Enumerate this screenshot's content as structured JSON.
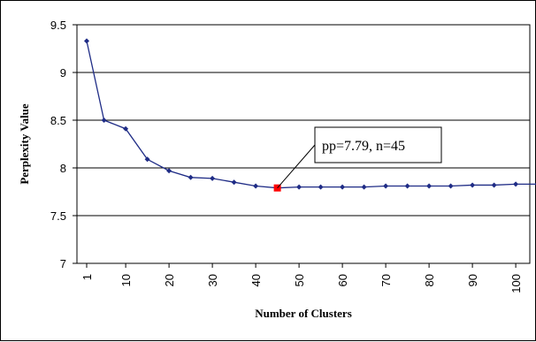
{
  "chart_data": {
    "type": "line",
    "title": "",
    "xlabel": "Number of Clusters",
    "ylabel": "Perplexity Value",
    "ylim": [
      7,
      9.5
    ],
    "y_ticks": [
      "7",
      "7.5",
      "8",
      "8.5",
      "9",
      "9.5"
    ],
    "x_ticks": [
      "1",
      "10",
      "20",
      "30",
      "40",
      "50",
      "60",
      "70",
      "80",
      "90",
      "100"
    ],
    "grid": "horizontal",
    "series": [
      {
        "color": "#1F2C86",
        "x": [
          1,
          5,
          10,
          15,
          20,
          25,
          30,
          35,
          40,
          45,
          50,
          55,
          60,
          65,
          70,
          75,
          80,
          85,
          90,
          95,
          100,
          105
        ],
        "values": [
          9.33,
          8.5,
          8.41,
          8.09,
          7.97,
          7.9,
          7.89,
          7.85,
          7.81,
          7.79,
          7.8,
          7.8,
          7.8,
          7.8,
          7.81,
          7.81,
          7.81,
          7.81,
          7.82,
          7.82,
          7.83,
          7.83
        ]
      }
    ],
    "highlight": {
      "x": 45,
      "y": 7.79,
      "color": "#FF0000"
    },
    "annotation": {
      "text": "pp=7.79, n=45"
    }
  }
}
